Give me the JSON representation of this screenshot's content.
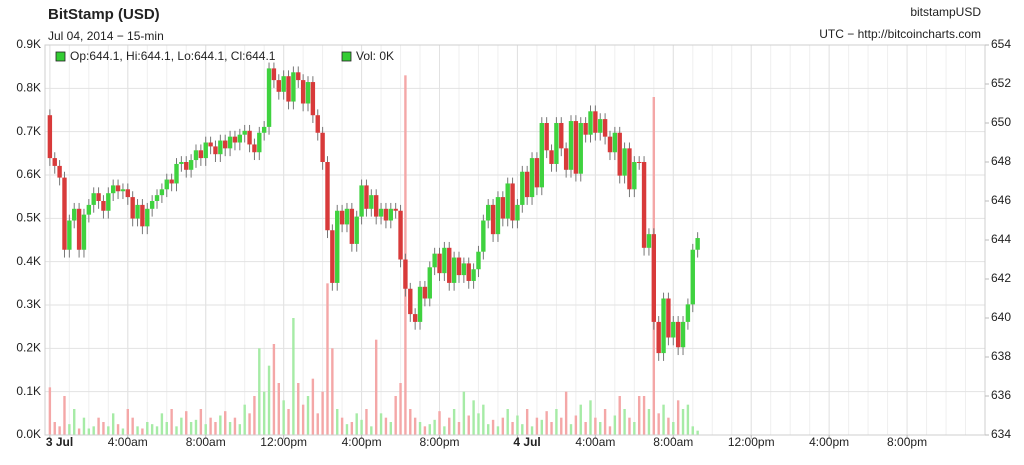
{
  "chart_data": {
    "type": "candlestick",
    "title": "BitStamp (USD)",
    "subtitle": "Jul 04, 2014 − 15-min",
    "symbol": "bitstampUSD",
    "source": "UTC − http://bitcoincharts.com",
    "legend": [
      "Op:644.1, Hi:644.1, Lo:644.1, Cl:644.1",
      "Vol: 0K"
    ],
    "legend_color": "#33cc33",
    "up_color": "#3fd23f",
    "down_color": "#d83a3a",
    "up_volume_color": "#a6eba6",
    "down_volume_color": "#f4a7a7",
    "grid": true,
    "xlim": [
      -0.25,
      48
    ],
    "xticks": [
      {
        "value": 0,
        "label": "3 Jul"
      },
      {
        "value": 4,
        "label": "4:00am"
      },
      {
        "value": 8,
        "label": "8:00am"
      },
      {
        "value": 12,
        "label": "12:00pm"
      },
      {
        "value": 16,
        "label": "4:00pm"
      },
      {
        "value": 20,
        "label": "8:00pm"
      },
      {
        "value": 24,
        "label": "4 Jul"
      },
      {
        "value": 28,
        "label": "4:00am"
      },
      {
        "value": 32,
        "label": "8:00am"
      },
      {
        "value": 36,
        "label": "12:00pm"
      },
      {
        "value": 40,
        "label": "4:00pm"
      },
      {
        "value": 44,
        "label": "8:00pm"
      }
    ],
    "ylim": [
      0,
      900
    ],
    "yticks": [
      {
        "value": 0,
        "label": "0.0K"
      },
      {
        "value": 100,
        "label": "0.1K"
      },
      {
        "value": 200,
        "label": "0.2K"
      },
      {
        "value": 300,
        "label": "0.3K"
      },
      {
        "value": 400,
        "label": "0.4K"
      },
      {
        "value": 500,
        "label": "0.5K"
      },
      {
        "value": 600,
        "label": "0.6K"
      },
      {
        "value": 700,
        "label": "0.7K"
      },
      {
        "value": 800,
        "label": "0.8K"
      },
      {
        "value": 900,
        "label": "0.9K"
      }
    ],
    "y2lim": [
      634,
      654
    ],
    "y2ticks": [
      634,
      636,
      638,
      640,
      642,
      644,
      646,
      648,
      650,
      652,
      654
    ],
    "x": [
      0,
      0.25,
      0.5,
      0.75,
      1,
      1.25,
      1.5,
      1.75,
      2,
      2.25,
      2.5,
      2.75,
      3,
      3.25,
      3.5,
      3.75,
      4,
      4.25,
      4.5,
      4.75,
      5,
      5.25,
      5.5,
      5.75,
      6,
      6.25,
      6.5,
      6.75,
      7,
      7.25,
      7.5,
      7.75,
      8,
      8.25,
      8.5,
      8.75,
      9,
      9.25,
      9.5,
      9.75,
      10,
      10.25,
      10.5,
      10.75,
      11,
      11.25,
      11.5,
      11.75,
      12,
      12.25,
      12.5,
      12.75,
      13,
      13.25,
      13.5,
      13.75,
      14,
      14.25,
      14.5,
      14.75,
      15,
      15.25,
      15.5,
      15.75,
      16,
      16.25,
      16.5,
      16.75,
      17,
      17.25,
      17.5,
      17.75,
      18,
      18.25,
      18.5,
      18.75,
      19,
      19.25,
      19.5,
      19.75,
      20,
      20.25,
      20.5,
      20.75,
      21,
      21.25,
      21.5,
      21.75,
      22,
      22.25,
      22.5,
      22.75,
      23,
      23.25,
      23.5,
      23.75,
      24,
      24.25,
      24.5,
      24.75,
      25,
      25.25,
      25.5,
      25.75,
      26,
      26.25,
      26.5,
      26.75,
      27,
      27.25,
      27.5,
      27.75,
      28,
      28.25,
      28.5,
      28.75,
      29,
      29.25,
      29.5,
      29.75,
      30,
      30.25,
      30.5,
      30.75,
      31,
      31.25,
      31.5,
      31.75,
      32,
      32.25,
      32.5,
      32.75,
      33,
      33.25
    ],
    "open": [
      650.4,
      648.2,
      647.8,
      647.2,
      643.5,
      645.0,
      645.6,
      643.5,
      645.3,
      645.8,
      646.4,
      646.0,
      645.5,
      646.4,
      646.8,
      646.5,
      646.6,
      646.2,
      645.1,
      645.8,
      644.7,
      645.6,
      646.0,
      646.3,
      646.6,
      647.1,
      646.9,
      647.9,
      648.0,
      647.6,
      648.1,
      648.6,
      648.2,
      649.0,
      648.8,
      648.4,
      649.1,
      648.7,
      649.3,
      649.0,
      649.4,
      649.6,
      648.9,
      648.5,
      649.5,
      649.8,
      652.8,
      652.2,
      651.6,
      652.4,
      651.1,
      652.6,
      652.2,
      651.0,
      652.1,
      650.4,
      649.5,
      648.0,
      644.5,
      641.8,
      645.5,
      644.8,
      645.6,
      643.8,
      645.2,
      646.8,
      645.6,
      646.3,
      645.2,
      645.6,
      645.0,
      645.6,
      645.5,
      643.0,
      641.5,
      640.2,
      639.8,
      641.6,
      641.0,
      642.6,
      643.3,
      642.3,
      643.6,
      641.8,
      643.1,
      642.2,
      642.8,
      641.9,
      642.5,
      643.4,
      645.0,
      645.8,
      644.3,
      646.2,
      645.1,
      646.9,
      645.0,
      645.8,
      647.5,
      646.2,
      648.2,
      646.7,
      650.0,
      648.6,
      647.9,
      650.0,
      648.7,
      647.6,
      650.1,
      647.4,
      650.0,
      649.4,
      650.6,
      649.5,
      650.2,
      649.3,
      648.5,
      649.5,
      647.3,
      648.7,
      646.6,
      648.0,
      648.0,
      643.6,
      644.3,
      639.8,
      638.2,
      641.0,
      639.0,
      639.8,
      638.5,
      639.8,
      640.7,
      643.5
    ],
    "high": [
      650.7,
      648.5,
      648.1,
      647.5,
      645.3,
      645.9,
      645.9,
      645.6,
      646.1,
      646.7,
      646.7,
      646.3,
      646.7,
      647.1,
      647.1,
      646.9,
      646.9,
      646.5,
      646.1,
      646.1,
      645.9,
      646.3,
      646.6,
      646.9,
      647.4,
      647.4,
      648.2,
      648.3,
      648.3,
      648.4,
      648.9,
      648.9,
      649.3,
      649.3,
      649.1,
      649.4,
      649.4,
      649.6,
      649.6,
      649.7,
      649.9,
      649.9,
      649.2,
      649.8,
      650.1,
      653.1,
      653.1,
      652.5,
      652.7,
      652.7,
      652.9,
      652.9,
      652.5,
      652.4,
      652.4,
      650.7,
      649.8,
      648.3,
      644.8,
      645.8,
      645.8,
      645.9,
      645.9,
      645.5,
      647.1,
      647.1,
      646.6,
      646.6,
      645.9,
      645.9,
      645.9,
      645.9,
      645.8,
      643.3,
      641.8,
      640.5,
      641.9,
      641.9,
      642.9,
      643.6,
      643.6,
      643.9,
      643.9,
      643.4,
      643.4,
      643.1,
      643.1,
      642.8,
      643.7,
      645.3,
      646.1,
      646.1,
      646.5,
      646.5,
      647.2,
      647.2,
      646.1,
      647.8,
      647.8,
      648.5,
      648.5,
      650.3,
      650.3,
      648.9,
      650.3,
      650.3,
      649.0,
      650.4,
      650.4,
      650.3,
      650.3,
      650.9,
      650.9,
      650.5,
      650.5,
      649.6,
      649.8,
      649.8,
      649.0,
      649.0,
      648.3,
      648.3,
      648.3,
      644.6,
      644.6,
      640.1,
      641.3,
      641.3,
      640.1,
      640.1,
      640.1,
      641.0,
      643.8,
      644.4
    ],
    "low": [
      647.8,
      647.4,
      646.8,
      643.1,
      643.1,
      644.6,
      643.1,
      643.1,
      644.9,
      645.4,
      645.6,
      645.1,
      645.1,
      646.0,
      646.1,
      646.1,
      645.8,
      644.7,
      644.7,
      644.3,
      644.3,
      645.2,
      645.6,
      645.9,
      646.2,
      646.5,
      646.5,
      647.5,
      647.2,
      647.2,
      647.7,
      647.8,
      647.8,
      648.4,
      648.0,
      648.0,
      648.3,
      648.3,
      648.6,
      648.6,
      649.0,
      648.5,
      648.1,
      648.1,
      649.1,
      649.4,
      651.8,
      651.2,
      651.2,
      650.7,
      650.7,
      651.8,
      650.6,
      650.6,
      650.0,
      649.1,
      647.6,
      644.1,
      641.4,
      641.4,
      644.4,
      644.4,
      643.4,
      643.4,
      644.8,
      645.2,
      645.2,
      644.8,
      644.8,
      644.6,
      644.6,
      645.1,
      642.6,
      641.1,
      639.8,
      639.4,
      639.4,
      640.6,
      640.6,
      642.2,
      641.9,
      641.9,
      641.4,
      641.4,
      641.8,
      641.8,
      641.5,
      641.5,
      642.1,
      643.0,
      644.6,
      643.9,
      643.9,
      644.7,
      644.7,
      644.6,
      644.6,
      645.4,
      645.8,
      645.8,
      646.3,
      646.3,
      648.2,
      647.5,
      647.5,
      648.3,
      647.2,
      647.2,
      647.0,
      647.0,
      649.0,
      649.0,
      649.1,
      649.1,
      648.9,
      648.1,
      648.1,
      646.9,
      646.9,
      646.2,
      646.2,
      647.6,
      643.2,
      643.2,
      639.4,
      637.8,
      637.8,
      638.6,
      638.6,
      638.1,
      638.1,
      639.4,
      640.3,
      643.1
    ],
    "close": [
      648.2,
      647.8,
      647.2,
      643.5,
      645.0,
      645.6,
      643.5,
      645.3,
      645.8,
      646.4,
      646.0,
      645.5,
      646.4,
      646.8,
      646.5,
      646.6,
      646.2,
      645.1,
      645.8,
      644.7,
      645.6,
      646.0,
      646.3,
      646.6,
      647.1,
      646.9,
      647.9,
      648.0,
      647.6,
      648.1,
      648.6,
      648.2,
      649.0,
      648.8,
      648.4,
      649.1,
      648.7,
      649.3,
      649.0,
      649.4,
      649.6,
      648.9,
      648.5,
      649.5,
      649.8,
      652.8,
      652.2,
      651.6,
      652.4,
      651.1,
      652.6,
      652.2,
      651.0,
      652.1,
      650.4,
      649.5,
      648.0,
      644.5,
      641.8,
      645.5,
      644.8,
      645.6,
      643.8,
      645.2,
      646.8,
      645.6,
      646.3,
      645.2,
      645.6,
      645.0,
      645.6,
      645.5,
      643.0,
      641.5,
      640.2,
      639.8,
      641.6,
      641.0,
      642.6,
      643.3,
      642.3,
      643.6,
      641.8,
      643.1,
      642.2,
      642.8,
      641.9,
      642.5,
      643.4,
      645.0,
      645.8,
      644.3,
      646.2,
      645.1,
      646.9,
      645.0,
      645.8,
      647.5,
      646.2,
      648.2,
      646.7,
      650.0,
      648.6,
      647.9,
      650.0,
      648.7,
      647.6,
      650.1,
      647.4,
      650.0,
      649.4,
      650.6,
      649.5,
      650.2,
      649.3,
      648.5,
      649.5,
      647.3,
      648.7,
      646.6,
      648.0,
      648.0,
      643.6,
      644.3,
      639.8,
      638.2,
      641.0,
      639.0,
      639.8,
      638.5,
      639.8,
      640.7,
      643.5,
      644.1
    ],
    "volume": [
      110,
      30,
      20,
      90,
      25,
      60,
      15,
      40,
      15,
      20,
      40,
      30,
      20,
      50,
      25,
      15,
      60,
      40,
      20,
      15,
      30,
      25,
      20,
      50,
      30,
      60,
      20,
      40,
      55,
      30,
      35,
      60,
      25,
      40,
      30,
      45,
      55,
      30,
      40,
      25,
      70,
      50,
      90,
      200,
      100,
      160,
      210,
      120,
      80,
      60,
      270,
      120,
      70,
      90,
      130,
      50,
      100,
      350,
      200,
      60,
      40,
      25,
      30,
      50,
      35,
      60,
      20,
      220,
      50,
      40,
      30,
      90,
      120,
      830,
      60,
      40,
      30,
      20,
      25,
      35,
      55,
      20,
      40,
      60,
      30,
      100,
      45,
      80,
      50,
      70,
      25,
      35,
      20,
      40,
      60,
      30,
      45,
      25,
      60,
      20,
      40,
      35,
      55,
      30,
      60,
      40,
      100,
      25,
      45,
      70,
      30,
      80,
      40,
      30,
      60,
      20,
      45,
      90,
      60,
      40,
      30,
      90,
      90,
      60,
      780,
      50,
      70,
      40,
      30,
      80,
      60,
      70,
      20,
      10
    ]
  }
}
